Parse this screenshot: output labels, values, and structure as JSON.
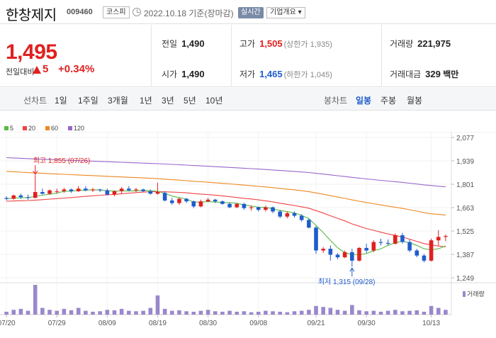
{
  "header": {
    "name": "한창제지",
    "code": "009460",
    "market": "코스피",
    "base_date": "2022.10.18 기준(장마감)",
    "realtime_label": "실시간",
    "company_label": "기업개요 ▾"
  },
  "price": {
    "current": "1,495",
    "change_label": "전일대비",
    "change_amount": "5",
    "change_rate": "+0.34%"
  },
  "stats": {
    "prev_close_label": "전일",
    "prev_close": "1,490",
    "open_label": "시가",
    "open": "1,490",
    "high_label": "고가",
    "high": "1,505",
    "upper_limit": "(상한가 1,935)",
    "low_label": "저가",
    "low": "1,465",
    "lower_limit": "(하한가 1,045)",
    "volume_label": "거래량",
    "volume": "221,975",
    "amount_label": "거래대금",
    "amount": "329",
    "amount_unit": "백만"
  },
  "tabs": {
    "line_chart": "선차트",
    "day1": "1일",
    "week1": "1주일",
    "month3": "3개월",
    "year1": "1년",
    "year3": "3년",
    "year5": "5년",
    "year10": "10년",
    "candle_chart": "봉차트",
    "daily": "일봉",
    "weekly": "주봉",
    "monthly": "월봉"
  },
  "colors": {
    "up": "#e02020",
    "down": "#1f5ccc",
    "ma5": "#55bb44",
    "ma20": "#ee4444",
    "ma60": "#ee8822",
    "ma120": "#9966cc",
    "volume": "#9988cc"
  },
  "chart_data": {
    "type": "candlestick",
    "legend": [
      {
        "name": "5",
        "color": "#55bb44"
      },
      {
        "name": "20",
        "color": "#ee4444"
      },
      {
        "name": "60",
        "color": "#ee8822"
      },
      {
        "name": "120",
        "color": "#9966cc"
      }
    ],
    "y_ticks": [
      "2,077",
      "1,939",
      "1,801",
      "1,663",
      "1,525",
      "1,387",
      "1,249"
    ],
    "ylim": [
      1249,
      2077
    ],
    "x_ticks": [
      "07/20",
      "07/29",
      "08/09",
      "08/19",
      "08/30",
      "09/08",
      "09/21",
      "09/30",
      "10/13"
    ],
    "x_tick_index": [
      0,
      7,
      14,
      21,
      28,
      35,
      43,
      50,
      59
    ],
    "annotation_high": "최고 1,855 (07/26)",
    "annotation_high_index": 4,
    "annotation_high_value": 1855,
    "annotation_low": "최저 1,315 (09/28)",
    "annotation_low_index": 48,
    "annotation_low_value": 1315,
    "volume_label": "거래량",
    "candles": [
      [
        1720,
        1730,
        1705,
        1715
      ],
      [
        1715,
        1740,
        1710,
        1735
      ],
      [
        1735,
        1745,
        1715,
        1725
      ],
      [
        1725,
        1740,
        1710,
        1720
      ],
      [
        1720,
        1855,
        1720,
        1755
      ],
      [
        1755,
        1775,
        1740,
        1745
      ],
      [
        1745,
        1770,
        1740,
        1765
      ],
      [
        1760,
        1775,
        1745,
        1760
      ],
      [
        1760,
        1780,
        1750,
        1770
      ],
      [
        1770,
        1775,
        1750,
        1760
      ],
      [
        1760,
        1790,
        1755,
        1775
      ],
      [
        1775,
        1790,
        1760,
        1765
      ],
      [
        1765,
        1780,
        1755,
        1770
      ],
      [
        1770,
        1775,
        1755,
        1765
      ],
      [
        1765,
        1775,
        1735,
        1740
      ],
      [
        1740,
        1765,
        1730,
        1760
      ],
      [
        1760,
        1785,
        1745,
        1775
      ],
      [
        1775,
        1790,
        1760,
        1765
      ],
      [
        1765,
        1780,
        1755,
        1770
      ],
      [
        1770,
        1775,
        1755,
        1760
      ],
      [
        1760,
        1770,
        1740,
        1745
      ],
      [
        1745,
        1810,
        1740,
        1755
      ],
      [
        1750,
        1760,
        1700,
        1705
      ],
      [
        1705,
        1720,
        1680,
        1690
      ],
      [
        1690,
        1720,
        1680,
        1715
      ],
      [
        1715,
        1720,
        1690,
        1700
      ],
      [
        1700,
        1705,
        1660,
        1670
      ],
      [
        1670,
        1710,
        1665,
        1700
      ],
      [
        1700,
        1720,
        1695,
        1710
      ],
      [
        1710,
        1715,
        1690,
        1700
      ],
      [
        1700,
        1705,
        1680,
        1685
      ],
      [
        1685,
        1695,
        1660,
        1665
      ],
      [
        1665,
        1690,
        1660,
        1685
      ],
      [
        1685,
        1690,
        1650,
        1660
      ],
      [
        1660,
        1675,
        1645,
        1665
      ],
      [
        1665,
        1670,
        1640,
        1650
      ],
      [
        1650,
        1675,
        1640,
        1665
      ],
      [
        1665,
        1670,
        1630,
        1640
      ],
      [
        1640,
        1650,
        1600,
        1610
      ],
      [
        1610,
        1640,
        1600,
        1630
      ],
      [
        1630,
        1640,
        1605,
        1615
      ],
      [
        1615,
        1625,
        1580,
        1590
      ],
      [
        1590,
        1600,
        1540,
        1545
      ],
      [
        1545,
        1555,
        1390,
        1410
      ],
      [
        1410,
        1430,
        1395,
        1420
      ],
      [
        1420,
        1440,
        1350,
        1385
      ],
      [
        1385,
        1395,
        1360,
        1370
      ],
      [
        1370,
        1410,
        1365,
        1400
      ],
      [
        1400,
        1420,
        1315,
        1350
      ],
      [
        1350,
        1430,
        1345,
        1425
      ],
      [
        1425,
        1450,
        1395,
        1410
      ],
      [
        1410,
        1470,
        1400,
        1460
      ],
      [
        1460,
        1480,
        1440,
        1455
      ],
      [
        1455,
        1475,
        1440,
        1450
      ],
      [
        1450,
        1510,
        1445,
        1500
      ],
      [
        1500,
        1515,
        1450,
        1460
      ],
      [
        1460,
        1475,
        1400,
        1410
      ],
      [
        1410,
        1420,
        1370,
        1380
      ],
      [
        1380,
        1390,
        1340,
        1350
      ],
      [
        1350,
        1480,
        1345,
        1470
      ],
      [
        1470,
        1530,
        1440,
        1490
      ],
      [
        1490,
        1505,
        1465,
        1495
      ]
    ],
    "volume": [
      6,
      10,
      12,
      8,
      62,
      14,
      10,
      8,
      12,
      9,
      14,
      8,
      6,
      7,
      10,
      9,
      12,
      8,
      7,
      8,
      14,
      40,
      12,
      8,
      9,
      7,
      6,
      8,
      10,
      7,
      6,
      8,
      6,
      7,
      5,
      6,
      8,
      7,
      6,
      5,
      7,
      8,
      10,
      18,
      16,
      14,
      10,
      8,
      20,
      9,
      7,
      8,
      6,
      8,
      10,
      7,
      8,
      9,
      6,
      18,
      14,
      10
    ]
  }
}
